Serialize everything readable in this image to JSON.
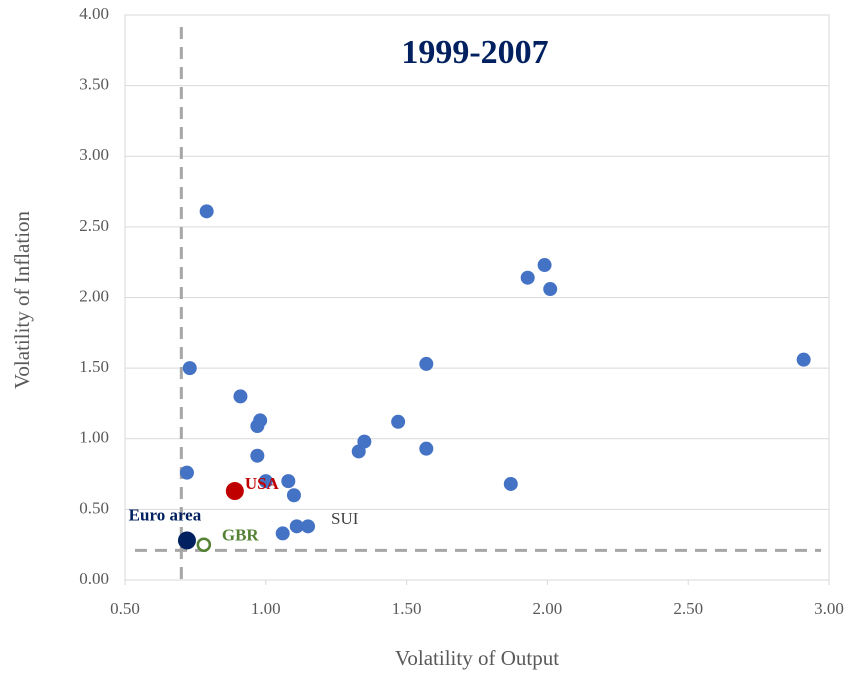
{
  "chart_data": {
    "type": "scatter",
    "title": "1999-2007",
    "xlabel": "Volatility of Output",
    "ylabel": "Volatility of Inflation",
    "xlim": [
      0.5,
      3.0
    ],
    "ylim": [
      0,
      4.0
    ],
    "xticks": [
      {
        "value": 0.5,
        "label": "0.50"
      },
      {
        "value": 1.0,
        "label": "1.00"
      },
      {
        "value": 1.5,
        "label": "1.50"
      },
      {
        "value": 2.0,
        "label": "2.00"
      },
      {
        "value": 2.5,
        "label": "2.50"
      },
      {
        "value": 3.0,
        "label": "3.00"
      }
    ],
    "yticks": [
      {
        "value": 0,
        "label": "0.00"
      },
      {
        "value": 0.5,
        "label": "0.50"
      },
      {
        "value": 1.0,
        "label": "1.00"
      },
      {
        "value": 1.5,
        "label": "1.50"
      },
      {
        "value": 2.0,
        "label": "2.00"
      },
      {
        "value": 2.5,
        "label": "2.50"
      },
      {
        "value": 3.0,
        "label": "3.00"
      },
      {
        "value": 3.5,
        "label": "3.50"
      },
      {
        "value": 4.0,
        "label": "4.00"
      }
    ],
    "grid": true,
    "series": [
      {
        "color": "#4472c4",
        "filled": true,
        "x": [
          0.79,
          0.73,
          0.91,
          0.98,
          0.97,
          0.97,
          0.72,
          1.0,
          1.08,
          1.1,
          1.11,
          1.15,
          1.06,
          1.33,
          1.35,
          1.47,
          1.57,
          1.57,
          1.87,
          1.93,
          1.99,
          2.01,
          2.91
        ],
        "values": [
          2.61,
          1.5,
          1.3,
          1.13,
          1.09,
          0.88,
          0.76,
          0.7,
          0.7,
          0.6,
          0.38,
          0.38,
          0.33,
          0.91,
          0.98,
          1.12,
          1.53,
          0.93,
          0.68,
          2.14,
          2.23,
          2.06,
          1.56
        ]
      },
      {
        "name": "USA",
        "color": "#c00000",
        "filled": true,
        "x": [
          0.89
        ],
        "values": [
          0.63
        ]
      },
      {
        "name": "Euro area",
        "color": "#002060",
        "filled": true,
        "x": [
          0.72
        ],
        "values": [
          0.28
        ]
      },
      {
        "name": "GBR",
        "color": "#548235",
        "filled": false,
        "x": [
          0.78
        ],
        "values": [
          0.25
        ]
      }
    ],
    "annotations": [
      {
        "text": "SUI",
        "x": 1.15,
        "y": 0.38
      }
    ],
    "reference_lines": {
      "x": 0.7,
      "y": 0.21
    }
  }
}
